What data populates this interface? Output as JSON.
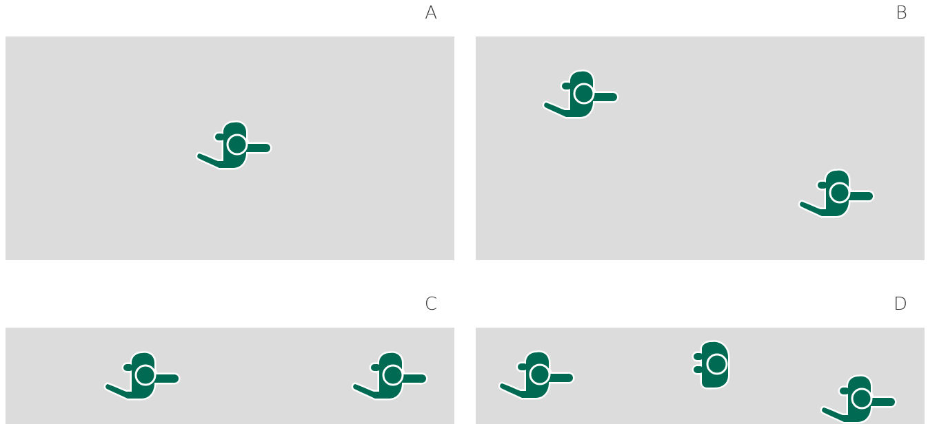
{
  "panels": [
    {
      "id": "a",
      "label": "A"
    },
    {
      "id": "b",
      "label": "B"
    },
    {
      "id": "c",
      "label": "C"
    },
    {
      "id": "d",
      "label": "D"
    }
  ],
  "colors": {
    "background": "#ffffff",
    "area": "#dcdcdc",
    "figure": "#006a52",
    "outline": "#ffffff",
    "label": "#333333"
  },
  "icons": {
    "figure": "person-top-view-icon"
  }
}
